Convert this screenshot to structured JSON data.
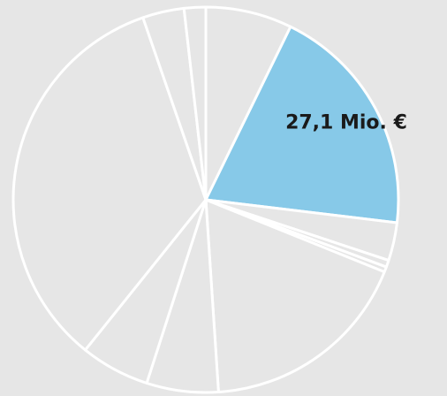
{
  "chart_data": {
    "type": "pie",
    "categories": [
      null,
      null,
      null,
      null,
      null,
      null,
      null,
      null,
      null,
      null,
      null
    ],
    "values": [
      10.0,
      27.1,
      4.4,
      0.8,
      0.6,
      24.6,
      8.3,
      8.0,
      46.8,
      4.8,
      2.5
    ],
    "value_labels": [
      null,
      "27,1 Mio. €",
      null,
      null,
      null,
      null,
      null,
      null,
      null,
      null,
      null
    ],
    "colors": [
      "#e6e6e6",
      "#87c9e8",
      "#e6e6e6",
      "#e6e6e6",
      "#e6e6e6",
      "#e6e6e6",
      "#e6e6e6",
      "#e6e6e6",
      "#e6e6e6",
      "#e6e6e6",
      "#e6e6e6"
    ],
    "start_angle": 0,
    "direction": "clockwise"
  }
}
